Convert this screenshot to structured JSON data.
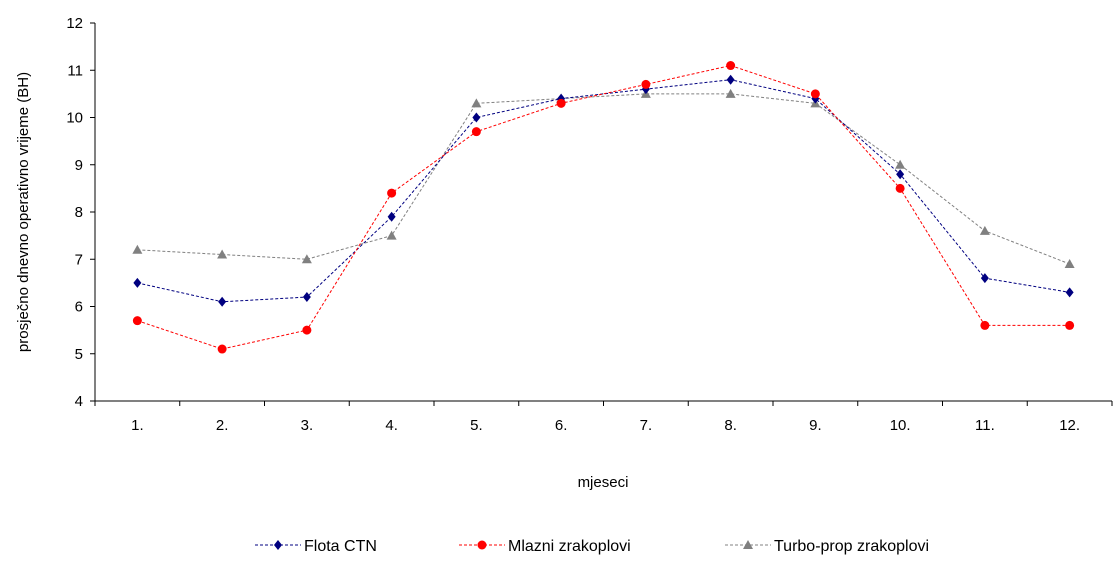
{
  "chart_data": {
    "type": "line",
    "categories": [
      "1.",
      "2.",
      "3.",
      "4.",
      "5.",
      "6.",
      "7.",
      "8.",
      "9.",
      "10.",
      "11.",
      "12."
    ],
    "series": [
      {
        "name": "Flota  CTN",
        "color": "#000080",
        "marker": "diamond",
        "values": [
          6.5,
          6.1,
          6.2,
          7.9,
          10.0,
          10.4,
          10.6,
          10.8,
          10.4,
          8.8,
          6.6,
          6.3
        ]
      },
      {
        "name": "Mlazni zrakoplovi",
        "color": "#ff0000",
        "marker": "circle",
        "values": [
          5.7,
          5.1,
          5.5,
          8.4,
          9.7,
          10.3,
          10.7,
          11.1,
          10.5,
          8.5,
          5.6,
          5.6
        ]
      },
      {
        "name": "Turbo-prop zrakoplovi",
        "color": "#808080",
        "marker": "triangle",
        "values": [
          7.2,
          7.1,
          7.0,
          7.5,
          10.3,
          10.4,
          10.5,
          10.5,
          10.3,
          9.0,
          7.6,
          6.9
        ]
      }
    ],
    "title": "",
    "xlabel": "mjeseci",
    "ylabel": "prosječno dnevno operativno vrijeme (BH)",
    "ylim": [
      4,
      12
    ],
    "yticks": [
      4,
      5,
      6,
      7,
      8,
      9,
      10,
      11,
      12
    ],
    "grid": false,
    "legend_position": "bottom"
  }
}
